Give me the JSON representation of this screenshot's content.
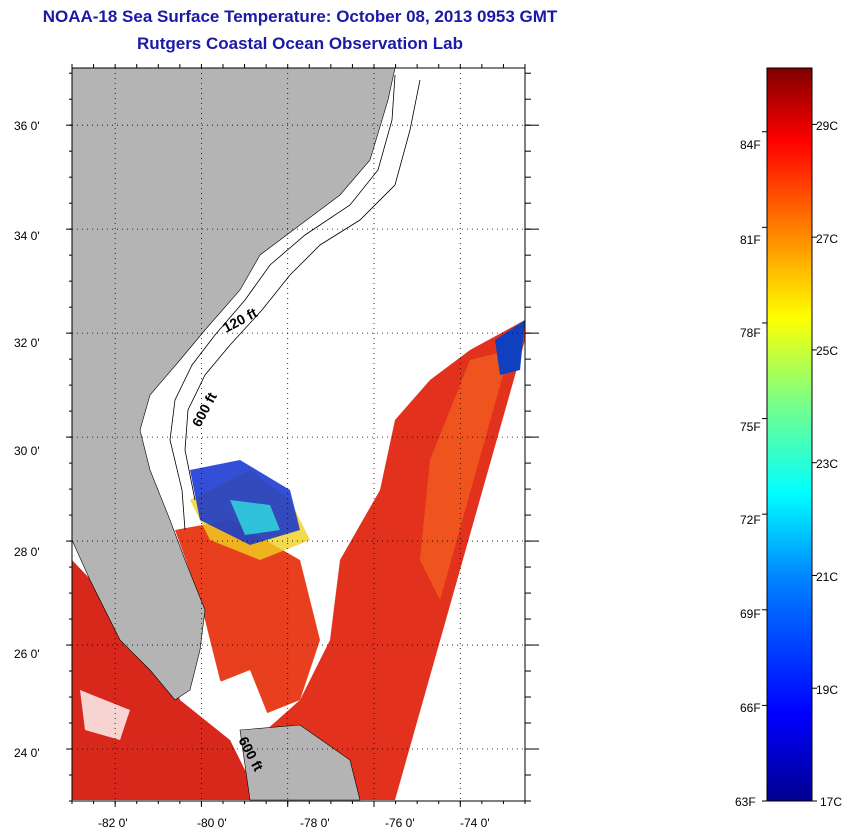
{
  "title": "NOAA-18 Sea Surface Temperature:  October 08, 2013 0953 GMT",
  "subtitle": "Rutgers Coastal Ocean Observation Lab",
  "map": {
    "lon_range": [
      -83.0,
      -72.5
    ],
    "lat_range": [
      23.0,
      37.1
    ],
    "y_ticks": [
      "36 0'",
      "34 0'",
      "32 0'",
      "30 0'",
      "28 0'",
      "26 0'",
      "24 0'"
    ],
    "y_tick_lats": [
      36,
      34,
      32,
      30,
      28,
      26,
      24
    ],
    "x_ticks": [
      "-82 0'",
      "-80 0'",
      "-78 0'",
      "-76 0'",
      "-74 0'"
    ],
    "x_tick_lons": [
      -82,
      -80,
      -78,
      -76,
      -74
    ],
    "contour_labels": [
      "120 ft",
      "600 ft",
      "600 ft"
    ],
    "land_color": "#b4b4b4",
    "grid": "dotted"
  },
  "colorbar": {
    "colors": [
      "#00008f",
      "#0000ff",
      "#0080ff",
      "#00ffff",
      "#80ff80",
      "#ffff00",
      "#ff8000",
      "#ff0000",
      "#800000"
    ],
    "fahrenheit_labels": [
      "84F",
      "81F",
      "78F",
      "75F",
      "72F",
      "69F",
      "66F",
      "63F"
    ],
    "celsius_labels": [
      "29C",
      "27C",
      "25C",
      "23C",
      "21C",
      "19C",
      "17C"
    ],
    "range_f": [
      63,
      86
    ],
    "range_c": [
      17,
      30
    ]
  }
}
